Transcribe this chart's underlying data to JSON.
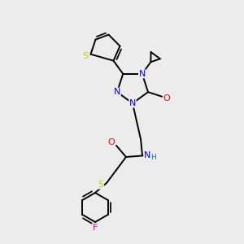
{
  "bg_color": "#ececec",
  "bond_color": "#000000",
  "colors": {
    "N": "#0000ff",
    "O": "#ff0000",
    "S": "#cccc00",
    "F": "#cc00cc",
    "H": "#008080",
    "C": "#000000"
  }
}
